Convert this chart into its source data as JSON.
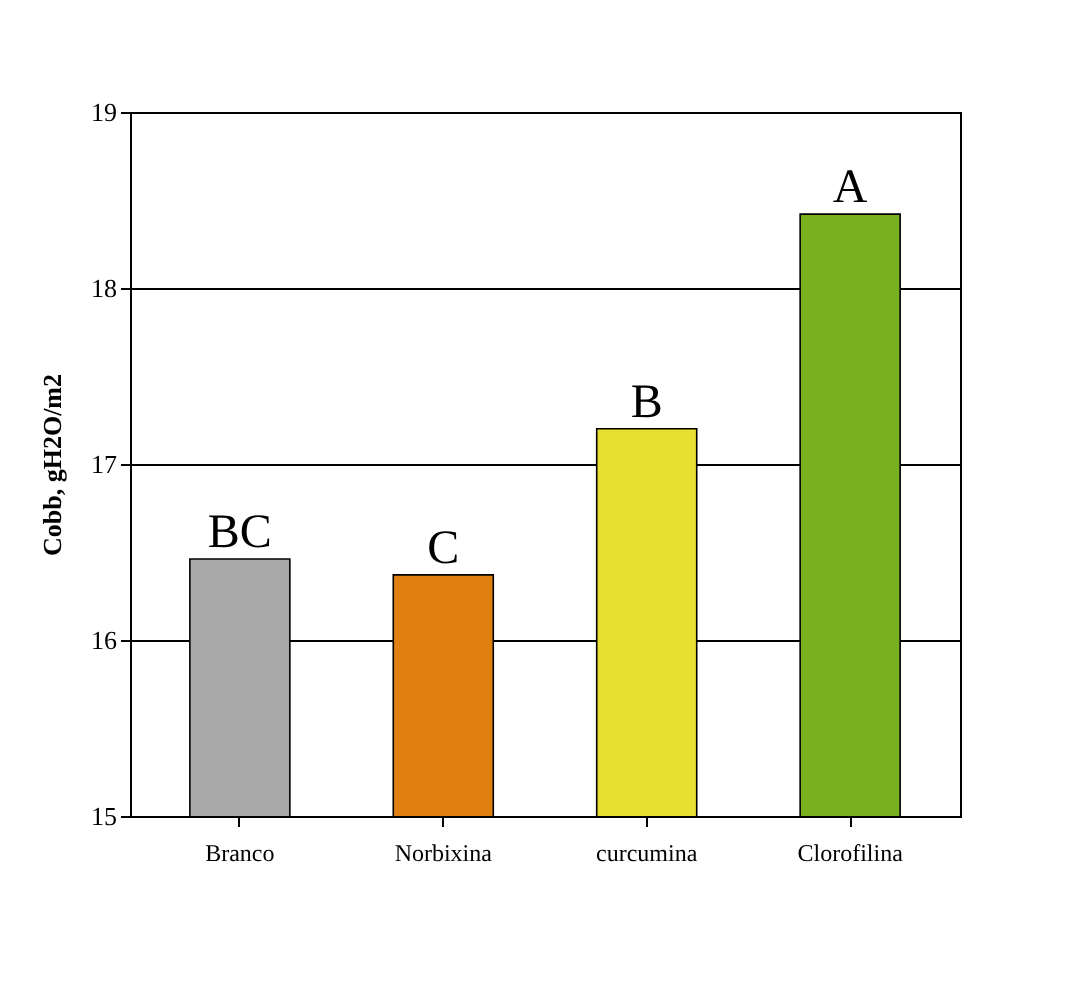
{
  "chart_data": {
    "type": "bar",
    "ylabel": "Cobb, gH2O/m2",
    "categories": [
      "Branco",
      "Norbixina",
      "curcumina",
      "Clorofilina"
    ],
    "values": [
      16.46,
      16.37,
      17.2,
      18.42
    ],
    "colors": [
      "#a8a8a8",
      "#e08010",
      "#e8e030",
      "#78b020"
    ],
    "ylim": [
      15,
      19
    ],
    "yticks": [
      15,
      16,
      17,
      18,
      19
    ],
    "grid": "y",
    "annotations": [
      {
        "text": "BC",
        "x": "Branco",
        "y": 16.46
      },
      {
        "text": "C",
        "x": "Norbixina",
        "y": 16.37
      },
      {
        "text": "B",
        "x": "curcumina",
        "y": 17.2
      },
      {
        "text": "A",
        "x": "Clorofilina",
        "y": 18.42
      }
    ]
  }
}
